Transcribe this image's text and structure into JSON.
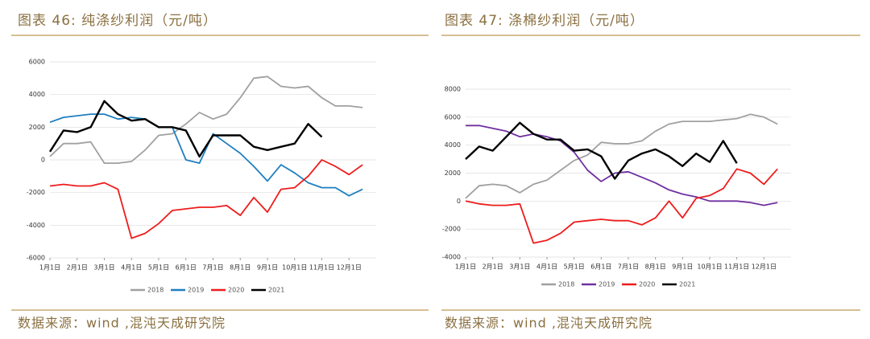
{
  "chart_data": [
    {
      "type": "line",
      "title": "图表 46: 纯涤纱利润（元/吨）",
      "source": "数据来源：wind ,混沌天成研究院",
      "x": [
        0,
        0.5,
        1,
        1.5,
        2,
        2.5,
        3,
        3.5,
        4,
        4.5,
        5,
        5.5,
        6,
        6.5,
        7,
        7.5,
        8,
        8.5,
        9,
        9.5,
        10,
        10.5,
        11,
        11.5
      ],
      "xlim": [
        0,
        12
      ],
      "xticks": [
        {
          "value": 0,
          "label": "1月1日"
        },
        {
          "value": 1,
          "label": "2月1日"
        },
        {
          "value": 2,
          "label": "3月1日"
        },
        {
          "value": 3,
          "label": "4月1日"
        },
        {
          "value": 4,
          "label": "5月1日"
        },
        {
          "value": 5,
          "label": "6月1日"
        },
        {
          "value": 6,
          "label": "7月1日"
        },
        {
          "value": 7,
          "label": "8月1日"
        },
        {
          "value": 8,
          "label": "9月1日"
        },
        {
          "value": 9,
          "label": "10月1日"
        },
        {
          "value": 10,
          "label": "11月1日"
        },
        {
          "value": 11,
          "label": "12月1日"
        }
      ],
      "ylim": [
        -6000,
        6000
      ],
      "yticks": [
        -6000,
        -4000,
        -2000,
        0,
        2000,
        4000,
        6000
      ],
      "grid": true,
      "series": [
        {
          "name": "2018",
          "color": "#a0a0a0",
          "values": [
            200,
            1000,
            1000,
            1100,
            -200,
            -200,
            -100,
            600,
            1500,
            1600,
            2200,
            2900,
            2500,
            2800,
            3800,
            5000,
            5100,
            4500,
            4400,
            4500,
            3800,
            3300,
            3300,
            3200
          ]
        },
        {
          "name": "2019",
          "color": "#1f7fc0",
          "values": [
            2300,
            2600,
            2700,
            2800,
            2800,
            2500,
            2600,
            2500,
            2000,
            2000,
            0,
            -200,
            1600,
            1000,
            400,
            -400,
            -1300,
            -300,
            -800,
            -1400,
            -1700,
            -1700,
            -2200,
            -1800
          ]
        },
        {
          "name": "2020",
          "color": "#ee1c1c",
          "values": [
            -1600,
            -1500,
            -1600,
            -1600,
            -1400,
            -1800,
            -4800,
            -4500,
            -3900,
            -3100,
            -3000,
            -2900,
            -2900,
            -2800,
            -3400,
            -2300,
            -3200,
            -1800,
            -1700,
            -1000,
            0,
            -400,
            -900,
            -300
          ]
        },
        {
          "name": "2021",
          "color": "#000000",
          "values": [
            500,
            1800,
            1700,
            2000,
            3600,
            2800,
            2400,
            2500,
            2000,
            2000,
            1800,
            200,
            1500,
            1500,
            1500,
            800,
            600,
            800,
            1000,
            2200,
            1400,
            null,
            null,
            null
          ]
        }
      ]
    },
    {
      "type": "line",
      "title": "图表 47: 涤棉纱利润（元/吨）",
      "source": "数据来源：wind ,混沌天成研究院",
      "x": [
        0,
        0.5,
        1,
        1.5,
        2,
        2.5,
        3,
        3.5,
        4,
        4.5,
        5,
        5.5,
        6,
        6.5,
        7,
        7.5,
        8,
        8.5,
        9,
        9.5,
        10,
        10.5,
        11,
        11.5
      ],
      "xlim": [
        0,
        12
      ],
      "xticks": [
        {
          "value": 0,
          "label": "1月1日"
        },
        {
          "value": 1,
          "label": "2月1日"
        },
        {
          "value": 2,
          "label": "3月1日"
        },
        {
          "value": 3,
          "label": "4月1日"
        },
        {
          "value": 4,
          "label": "5月1日"
        },
        {
          "value": 5,
          "label": "6月1日"
        },
        {
          "value": 6,
          "label": "7月1日"
        },
        {
          "value": 7,
          "label": "8月1日"
        },
        {
          "value": 8,
          "label": "9月1日"
        },
        {
          "value": 9,
          "label": "10月1日"
        },
        {
          "value": 10,
          "label": "11月1日"
        },
        {
          "value": 11,
          "label": "12月1日"
        }
      ],
      "ylim": [
        -4000,
        8000
      ],
      "yticks": [
        -4000,
        -2000,
        0,
        2000,
        4000,
        6000,
        8000
      ],
      "grid": true,
      "series": [
        {
          "name": "2018",
          "color": "#a0a0a0",
          "values": [
            200,
            1100,
            1200,
            1100,
            600,
            1200,
            1500,
            2200,
            2900,
            3300,
            4200,
            4100,
            4100,
            4300,
            5000,
            5500,
            5700,
            5700,
            5700,
            5800,
            5900,
            6200,
            6000,
            5500
          ]
        },
        {
          "name": "2019",
          "color": "#7030a0",
          "values": [
            5400,
            5400,
            5200,
            5000,
            4600,
            4800,
            4600,
            4300,
            3500,
            2200,
            1400,
            2000,
            2100,
            1700,
            1300,
            800,
            500,
            300,
            0,
            0,
            0,
            -100,
            -300,
            -100
          ]
        },
        {
          "name": "2020",
          "color": "#ee1c1c",
          "values": [
            0,
            -200,
            -300,
            -300,
            -200,
            -3000,
            -2800,
            -2300,
            -1500,
            -1400,
            -1300,
            -1400,
            -1400,
            -1700,
            -1200,
            0,
            -1200,
            200,
            400,
            900,
            2300,
            2000,
            1200,
            2300
          ]
        },
        {
          "name": "2021",
          "color": "#000000",
          "values": [
            3000,
            3900,
            3600,
            4600,
            5600,
            4800,
            4400,
            4400,
            3600,
            3700,
            3200,
            1600,
            2900,
            3400,
            3700,
            3200,
            2500,
            3400,
            2800,
            4300,
            2700,
            null,
            null,
            null
          ]
        }
      ]
    }
  ]
}
